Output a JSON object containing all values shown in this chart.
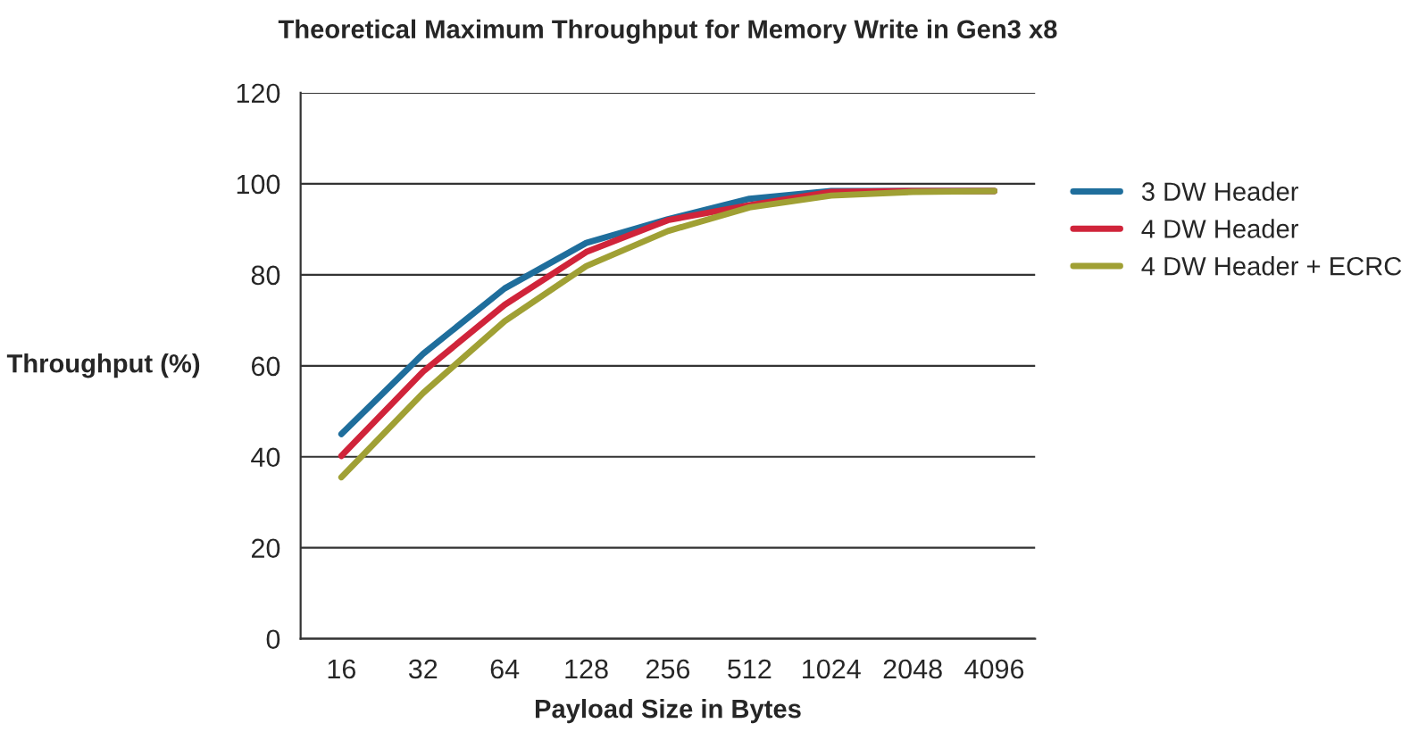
{
  "chart_data": {
    "type": "line",
    "title": "Theoretical Maximum Throughput for Memory Write in Gen3 x8",
    "xlabel": "Payload Size in Bytes",
    "ylabel": "Throughput (%)",
    "categories": [
      "16",
      "32",
      "64",
      "128",
      "256",
      "512",
      "1024",
      "2048",
      "4096"
    ],
    "series": [
      {
        "name": "3 DW Header",
        "color": "#1f6e9c",
        "values": [
          45,
          62.6,
          77,
          87,
          92.2,
          96.7,
          98.4,
          98.4,
          98.4
        ]
      },
      {
        "name": "4 DW Header",
        "color": "#d0243a",
        "values": [
          40.2,
          58.7,
          73.4,
          85,
          92,
          95.3,
          98.2,
          98.4,
          98.4
        ]
      },
      {
        "name": "4 DW Header + ECRC",
        "color": "#a0a034",
        "values": [
          35.5,
          54,
          69.8,
          81.9,
          89.6,
          94.8,
          97.4,
          98.2,
          98.4
        ]
      }
    ],
    "ylim": [
      0,
      120
    ],
    "yticks": [
      0,
      20,
      40,
      60,
      80,
      100,
      120
    ],
    "grid": "y",
    "legend": "right",
    "marker": "none",
    "line_style": "solid"
  }
}
